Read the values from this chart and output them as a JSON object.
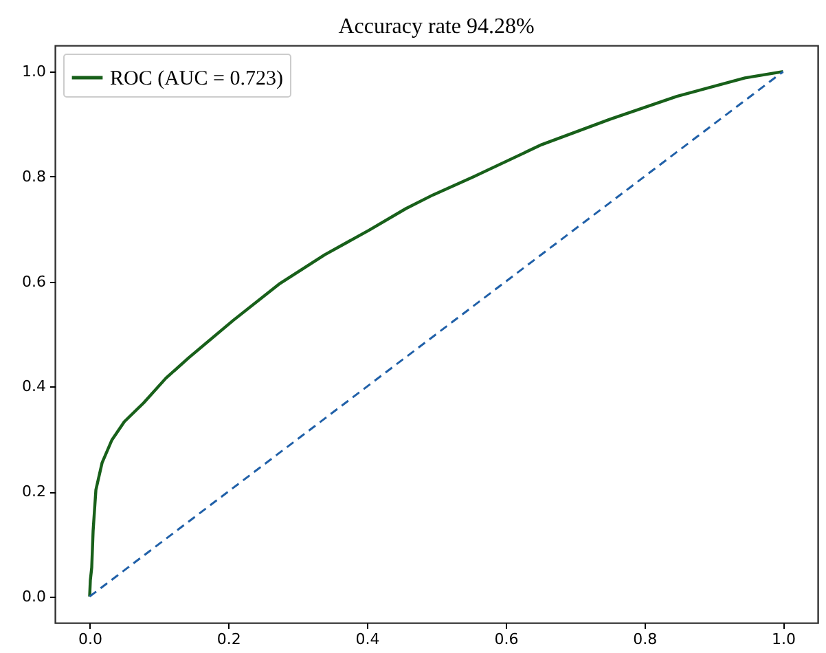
{
  "chart_data": {
    "type": "line",
    "title": "Accuracy rate 94.28%",
    "xlim": [
      -0.05,
      1.05
    ],
    "ylim": [
      -0.05,
      1.05
    ],
    "xticks": [
      {
        "value": 0,
        "label": "0.0"
      },
      0.2,
      0.4,
      0.6,
      0.8,
      {
        "value": 1,
        "label": "1.0"
      }
    ],
    "yticks": [
      {
        "value": 0,
        "label": "0.0"
      },
      0.2,
      0.4,
      0.6,
      0.8,
      {
        "value": 1,
        "label": "1.0"
      }
    ],
    "grid": false,
    "legend": "top left",
    "marker": "none",
    "series": [
      {
        "name": "ROC (AUC = 0.723)",
        "color": "#18601a",
        "line_style": "solid",
        "x": [
          0,
          0.001,
          0.003,
          0.005,
          0.009,
          0.018,
          0.032,
          0.05,
          0.078,
          0.11,
          0.143,
          0.207,
          0.273,
          0.339,
          0.403,
          0.456,
          0.495,
          0.554,
          0.652,
          0.75,
          0.847,
          0.945,
          1
        ],
        "values": [
          0,
          0.031,
          0.055,
          0.125,
          0.203,
          0.255,
          0.298,
          0.333,
          0.369,
          0.416,
          0.455,
          0.526,
          0.595,
          0.651,
          0.698,
          0.739,
          0.765,
          0.8,
          0.861,
          0.909,
          0.953,
          0.988,
          1
        ]
      },
      {
        "color": "#2060a8",
        "line_style": "dashed",
        "x": [
          0,
          1
        ],
        "values": [
          0,
          1
        ]
      }
    ]
  }
}
